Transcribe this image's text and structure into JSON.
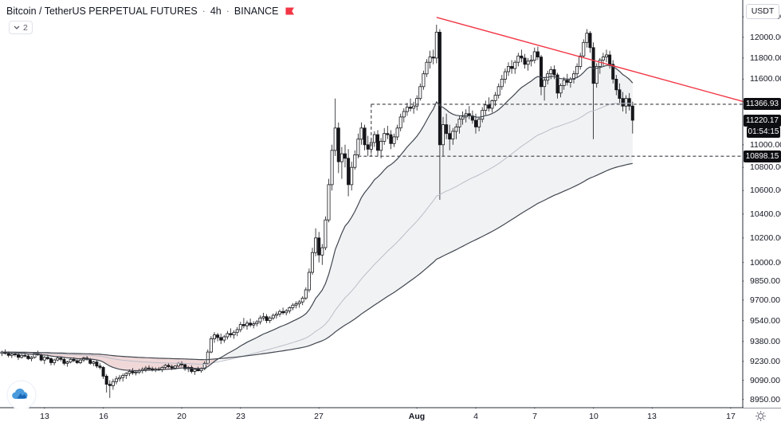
{
  "header": {
    "symbol_title": "Bitcoin / TetherUS PERPETUAL FUTURES",
    "separator": "·",
    "interval": "4h",
    "exchange": "BINANCE",
    "indicators_count": "2"
  },
  "price_axis": {
    "currency_button": "USDT",
    "ticks": [
      {
        "label": "12200.00",
        "price": 12200
      },
      {
        "label": "12000.00",
        "price": 12000
      },
      {
        "label": "11800.00",
        "price": 11800
      },
      {
        "label": "11600.00",
        "price": 11600
      },
      {
        "label": "11000.00",
        "price": 11000
      },
      {
        "label": "10800.00",
        "price": 10800
      },
      {
        "label": "10600.00",
        "price": 10600
      },
      {
        "label": "10400.00",
        "price": 10400
      },
      {
        "label": "10200.00",
        "price": 10200
      },
      {
        "label": "10000.00",
        "price": 10000
      },
      {
        "label": "9850.00",
        "price": 9850
      },
      {
        "label": "9700.00",
        "price": 9700
      },
      {
        "label": "9540.00",
        "price": 9540
      },
      {
        "label": "9380.00",
        "price": 9380
      },
      {
        "label": "9230.00",
        "price": 9230
      },
      {
        "label": "9090.00",
        "price": 9090
      },
      {
        "label": "8950.00",
        "price": 8950
      }
    ]
  },
  "time_axis": {
    "ticks": [
      {
        "label": "13",
        "index": 13
      },
      {
        "label": "16",
        "index": 31
      },
      {
        "label": "20",
        "index": 55
      },
      {
        "label": "23",
        "index": 73
      },
      {
        "label": "27",
        "index": 97
      },
      {
        "label": "Aug",
        "index": 127,
        "bold": true
      },
      {
        "label": "4",
        "index": 145
      },
      {
        "label": "7",
        "index": 163
      },
      {
        "label": "10",
        "index": 181
      },
      {
        "label": "13",
        "index": 199
      },
      {
        "label": "17",
        "index": 223
      }
    ]
  },
  "badges": {
    "level_high": "11366.93",
    "last_price": "11220.17",
    "countdown": "01:54:15",
    "level_low": "10898.15"
  },
  "colors": {
    "up_fill": "#ffffff",
    "down_fill": "#16171b",
    "candle_outline": "#16171b",
    "trendline": "#f23645",
    "flag": "#f23645",
    "ma_fast": "#40464f",
    "ma_mid": "#b9bec8",
    "ma_slow": "#40464f",
    "fill_bull": "rgba(115,130,140,0.10)",
    "fill_bear": "rgba(239,83,80,0.16)",
    "level_line": "#3c3f46",
    "axis_line": "#2a2e39",
    "axis_text": "#131722",
    "muted_text": "#787b86",
    "border": "#e0e3eb",
    "badge_bg": "#0d0e12",
    "badge_text": "#ffffff",
    "logo_cloud": "#4a9bdc",
    "logo_mountain": "#1b66b5"
  },
  "chart_data": {
    "type": "candlestick",
    "title": "Bitcoin / TetherUS PERPETUAL FUTURES · 4h · BINANCE",
    "symbol": "Bitcoin / TetherUS PERPETUAL FUTURES",
    "interval": "4h",
    "exchange": "BINANCE",
    "quote_currency": "USDT",
    "scale": {
      "kind": "log",
      "price_at_top": 12368,
      "price_at_bottom": 8890
    },
    "grid": false,
    "moving_averages": [
      {
        "role": "fast",
        "period": 21
      },
      {
        "role": "mid",
        "period": 75
      },
      {
        "role": "slow",
        "period": 160
      }
    ],
    "levels": [
      {
        "label": "11366.93",
        "price": 11366.93,
        "start_index": 113
      },
      {
        "label": "10898.15",
        "price": 10898.15,
        "start_index": 109
      }
    ],
    "level_connector": {
      "index": 113,
      "from_price": 11366.93,
      "to_price": 10898.15
    },
    "trendline": {
      "from": {
        "index": 133,
        "price": 12195
      },
      "to": {
        "index": 227,
        "price": 11390
      }
    },
    "last_price": 11220.17,
    "countdown": "01:54:15",
    "candles": [
      [
        9290,
        9310,
        9270,
        9300
      ],
      [
        9300,
        9320,
        9280,
        9290
      ],
      [
        9290,
        9305,
        9260,
        9275
      ],
      [
        9275,
        9295,
        9255,
        9285
      ],
      [
        9285,
        9300,
        9265,
        9280
      ],
      [
        9280,
        9295,
        9240,
        9260
      ],
      [
        9260,
        9285,
        9250,
        9275
      ],
      [
        9275,
        9300,
        9260,
        9270
      ],
      [
        9270,
        9285,
        9240,
        9250
      ],
      [
        9250,
        9270,
        9230,
        9260
      ],
      [
        9260,
        9300,
        9250,
        9290
      ],
      [
        9290,
        9310,
        9270,
        9280
      ],
      [
        9280,
        9290,
        9230,
        9240
      ],
      [
        9240,
        9270,
        9210,
        9260
      ],
      [
        9260,
        9280,
        9240,
        9250
      ],
      [
        9250,
        9260,
        9200,
        9220
      ],
      [
        9220,
        9250,
        9200,
        9240
      ],
      [
        9240,
        9270,
        9230,
        9255
      ],
      [
        9255,
        9265,
        9230,
        9245
      ],
      [
        9245,
        9260,
        9200,
        9215
      ],
      [
        9215,
        9235,
        9190,
        9225
      ],
      [
        9225,
        9255,
        9215,
        9245
      ],
      [
        9245,
        9260,
        9225,
        9235
      ],
      [
        9235,
        9250,
        9210,
        9220
      ],
      [
        9220,
        9245,
        9210,
        9240
      ],
      [
        9240,
        9265,
        9225,
        9255
      ],
      [
        9255,
        9270,
        9235,
        9245
      ],
      [
        9245,
        9255,
        9205,
        9215
      ],
      [
        9215,
        9235,
        9195,
        9225
      ],
      [
        9225,
        9240,
        9180,
        9195
      ],
      [
        9195,
        9215,
        9170,
        9185
      ],
      [
        9185,
        9195,
        9100,
        9120
      ],
      [
        9120,
        9135,
        9000,
        9060
      ],
      [
        9060,
        9090,
        8960,
        9050
      ],
      [
        9050,
        9100,
        9020,
        9080
      ],
      [
        9080,
        9120,
        9060,
        9100
      ],
      [
        9100,
        9130,
        9080,
        9110
      ],
      [
        9110,
        9140,
        9080,
        9125
      ],
      [
        9125,
        9150,
        9100,
        9140
      ],
      [
        9140,
        9170,
        9120,
        9155
      ],
      [
        9155,
        9180,
        9130,
        9145
      ],
      [
        9145,
        9165,
        9125,
        9150
      ],
      [
        9150,
        9175,
        9135,
        9160
      ],
      [
        9160,
        9185,
        9140,
        9170
      ],
      [
        9170,
        9195,
        9150,
        9180
      ],
      [
        9180,
        9200,
        9160,
        9175
      ],
      [
        9175,
        9190,
        9155,
        9165
      ],
      [
        9165,
        9185,
        9150,
        9172
      ],
      [
        9172,
        9188,
        9158,
        9170
      ],
      [
        9170,
        9195,
        9150,
        9185
      ],
      [
        9185,
        9210,
        9170,
        9200
      ],
      [
        9200,
        9220,
        9180,
        9190
      ],
      [
        9190,
        9205,
        9165,
        9180
      ],
      [
        9180,
        9200,
        9170,
        9195
      ],
      [
        9195,
        9225,
        9185,
        9215
      ],
      [
        9215,
        9230,
        9190,
        9205
      ],
      [
        9205,
        9215,
        9160,
        9175
      ],
      [
        9175,
        9195,
        9150,
        9185
      ],
      [
        9185,
        9200,
        9140,
        9155
      ],
      [
        9155,
        9180,
        9130,
        9170
      ],
      [
        9170,
        9190,
        9155,
        9160
      ],
      [
        9160,
        9185,
        9145,
        9175
      ],
      [
        9175,
        9230,
        9165,
        9215
      ],
      [
        9215,
        9320,
        9205,
        9300
      ],
      [
        9300,
        9420,
        9290,
        9400
      ],
      [
        9400,
        9450,
        9370,
        9430
      ],
      [
        9430,
        9445,
        9380,
        9410
      ],
      [
        9410,
        9440,
        9360,
        9390
      ],
      [
        9390,
        9430,
        9370,
        9415
      ],
      [
        9415,
        9460,
        9395,
        9440
      ],
      [
        9440,
        9480,
        9410,
        9430
      ],
      [
        9430,
        9465,
        9400,
        9450
      ],
      [
        9450,
        9490,
        9420,
        9470
      ],
      [
        9470,
        9530,
        9450,
        9510
      ],
      [
        9510,
        9560,
        9480,
        9500
      ],
      [
        9500,
        9540,
        9470,
        9520
      ],
      [
        9520,
        9555,
        9490,
        9505
      ],
      [
        9505,
        9535,
        9480,
        9515
      ],
      [
        9515,
        9545,
        9495,
        9530
      ],
      [
        9530,
        9580,
        9510,
        9560
      ],
      [
        9560,
        9600,
        9540,
        9570
      ],
      [
        9570,
        9590,
        9520,
        9540
      ],
      [
        9540,
        9575,
        9520,
        9560
      ],
      [
        9560,
        9595,
        9545,
        9580
      ],
      [
        9580,
        9610,
        9555,
        9590
      ],
      [
        9590,
        9625,
        9570,
        9610
      ],
      [
        9610,
        9640,
        9585,
        9600
      ],
      [
        9600,
        9630,
        9580,
        9615
      ],
      [
        9615,
        9650,
        9595,
        9640
      ],
      [
        9640,
        9675,
        9620,
        9660
      ],
      [
        9660,
        9690,
        9635,
        9670
      ],
      [
        9670,
        9700,
        9640,
        9685
      ],
      [
        9685,
        9730,
        9660,
        9715
      ],
      [
        9715,
        9800,
        9700,
        9780
      ],
      [
        9780,
        9950,
        9760,
        9920
      ],
      [
        9920,
        10120,
        9900,
        10080
      ],
      [
        10080,
        10280,
        10050,
        10200
      ],
      [
        10200,
        10250,
        10000,
        10060
      ],
      [
        10060,
        10150,
        9980,
        10120
      ],
      [
        10120,
        10380,
        10100,
        10350
      ],
      [
        10350,
        10700,
        10330,
        10650
      ],
      [
        10650,
        11000,
        10600,
        10950
      ],
      [
        10950,
        11420,
        10900,
        11150
      ],
      [
        11150,
        11200,
        10750,
        10850
      ],
      [
        10850,
        10980,
        10700,
        10920
      ],
      [
        10920,
        11000,
        10800,
        10880
      ],
      [
        10880,
        10960,
        10550,
        10650
      ],
      [
        10650,
        10850,
        10600,
        10800
      ],
      [
        10800,
        10950,
        10780,
        10910
      ],
      [
        10910,
        11100,
        10880,
        11050
      ],
      [
        11050,
        11200,
        11000,
        11150
      ],
      [
        11150,
        11180,
        10950,
        11000
      ],
      [
        11000,
        11080,
        10900,
        10960
      ],
      [
        10960,
        11050,
        10920,
        11020
      ],
      [
        11020,
        11120,
        10980,
        11090
      ],
      [
        11090,
        11130,
        10900,
        10950
      ],
      [
        10950,
        11060,
        10880,
        11030
      ],
      [
        11030,
        11150,
        11000,
        11100
      ],
      [
        11100,
        11170,
        11050,
        11090
      ],
      [
        11090,
        11130,
        10960,
        11010
      ],
      [
        11010,
        11100,
        10980,
        11070
      ],
      [
        11070,
        11180,
        11040,
        11150
      ],
      [
        11150,
        11280,
        11120,
        11250
      ],
      [
        11250,
        11330,
        11200,
        11300
      ],
      [
        11300,
        11380,
        11260,
        11340
      ],
      [
        11340,
        11420,
        11300,
        11330
      ],
      [
        11330,
        11390,
        11280,
        11350
      ],
      [
        11350,
        11450,
        11310,
        11420
      ],
      [
        11420,
        11560,
        11400,
        11530
      ],
      [
        11530,
        11680,
        11500,
        11650
      ],
      [
        11650,
        11790,
        11620,
        11760
      ],
      [
        11760,
        11870,
        11700,
        11810
      ],
      [
        11810,
        11880,
        11740,
        11800
      ],
      [
        11800,
        12123,
        11750,
        12050
      ],
      [
        12050,
        12080,
        10520,
        11000
      ],
      [
        11000,
        11250,
        10900,
        11180
      ],
      [
        11180,
        11280,
        11050,
        11100
      ],
      [
        11100,
        11180,
        10950,
        11050
      ],
      [
        11050,
        11150,
        11000,
        11120
      ],
      [
        11120,
        11190,
        11050,
        11160
      ],
      [
        11160,
        11260,
        11100,
        11230
      ],
      [
        11230,
        11300,
        11180,
        11250
      ],
      [
        11250,
        11320,
        11200,
        11280
      ],
      [
        11280,
        11350,
        11230,
        11260
      ],
      [
        11260,
        11310,
        11190,
        11220
      ],
      [
        11220,
        11280,
        11100,
        11160
      ],
      [
        11160,
        11250,
        11120,
        11230
      ],
      [
        11230,
        11340,
        11200,
        11310
      ],
      [
        11310,
        11400,
        11270,
        11360
      ],
      [
        11360,
        11430,
        11300,
        11330
      ],
      [
        11330,
        11410,
        11290,
        11400
      ],
      [
        11400,
        11480,
        11350,
        11450
      ],
      [
        11450,
        11560,
        11420,
        11530
      ],
      [
        11530,
        11640,
        11500,
        11600
      ],
      [
        11600,
        11700,
        11560,
        11670
      ],
      [
        11670,
        11760,
        11630,
        11720
      ],
      [
        11720,
        11780,
        11650,
        11700
      ],
      [
        11700,
        11780,
        11650,
        11760
      ],
      [
        11760,
        11850,
        11720,
        11820
      ],
      [
        11820,
        11880,
        11760,
        11800
      ],
      [
        11800,
        11840,
        11700,
        11740
      ],
      [
        11740,
        11800,
        11680,
        11770
      ],
      [
        11770,
        11830,
        11720,
        11780
      ],
      [
        11780,
        11900,
        11750,
        11860
      ],
      [
        11860,
        11910,
        11780,
        11810
      ],
      [
        11810,
        11830,
        11450,
        11530
      ],
      [
        11530,
        11620,
        11400,
        11590
      ],
      [
        11590,
        11680,
        11550,
        11650
      ],
      [
        11650,
        11720,
        11600,
        11690
      ],
      [
        11690,
        11730,
        11600,
        11640
      ],
      [
        11640,
        11660,
        11420,
        11470
      ],
      [
        11470,
        11560,
        11430,
        11540
      ],
      [
        11540,
        11620,
        11500,
        11590
      ],
      [
        11590,
        11650,
        11540,
        11570
      ],
      [
        11570,
        11620,
        11520,
        11600
      ],
      [
        11600,
        11680,
        11560,
        11650
      ],
      [
        11650,
        11750,
        11610,
        11720
      ],
      [
        11720,
        11850,
        11690,
        11820
      ],
      [
        11820,
        11980,
        11800,
        11950
      ],
      [
        11950,
        12080,
        11900,
        12040
      ],
      [
        12040,
        12060,
        11850,
        11900
      ],
      [
        11900,
        11950,
        11050,
        11560
      ],
      [
        11560,
        11750,
        11520,
        11720
      ],
      [
        11720,
        11800,
        11650,
        11780
      ],
      [
        11780,
        11850,
        11720,
        11810
      ],
      [
        11810,
        11880,
        11760,
        11830
      ],
      [
        11830,
        11870,
        11700,
        11740
      ],
      [
        11740,
        11780,
        11560,
        11600
      ],
      [
        11600,
        11640,
        11450,
        11500
      ],
      [
        11500,
        11560,
        11380,
        11420
      ],
      [
        11420,
        11480,
        11300,
        11350
      ],
      [
        11350,
        11450,
        11280,
        11420
      ],
      [
        11420,
        11470,
        11310,
        11350
      ],
      [
        11350,
        11390,
        11100,
        11220.17
      ]
    ]
  }
}
